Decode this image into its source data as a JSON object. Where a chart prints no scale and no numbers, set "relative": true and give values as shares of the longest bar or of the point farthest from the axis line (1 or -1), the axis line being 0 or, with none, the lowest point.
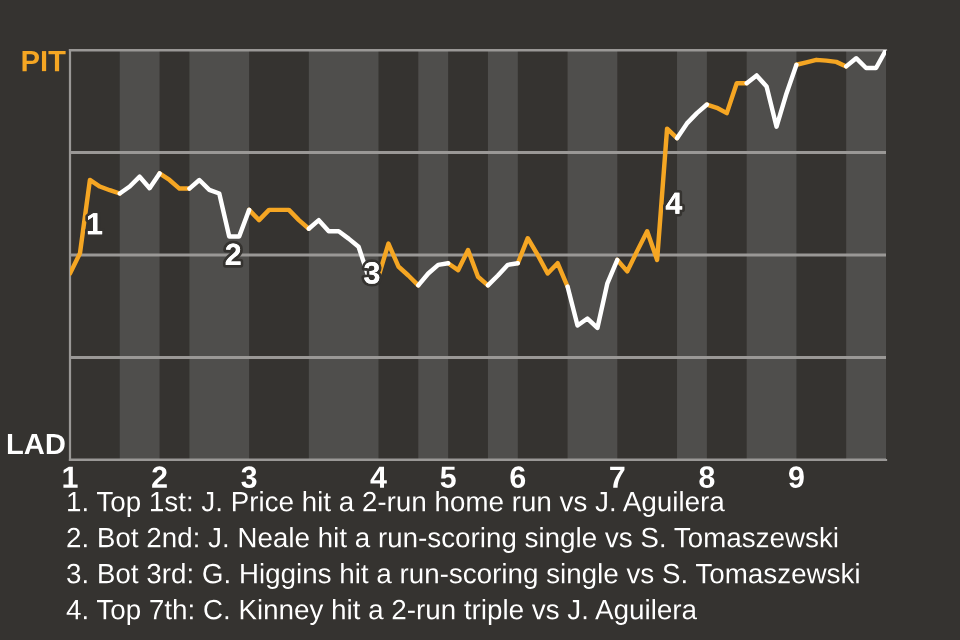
{
  "chart_data": {
    "type": "line",
    "relative": true,
    "categories": [
      "1",
      null,
      null,
      null,
      null,
      null,
      null,
      null,
      null,
      "2",
      null,
      null,
      null,
      null,
      null,
      null,
      null,
      null,
      "3",
      null,
      null,
      null,
      null,
      null,
      null,
      null,
      null,
      null,
      null,
      null,
      null,
      "4",
      null,
      null,
      null,
      null,
      null,
      null,
      "5",
      null,
      null,
      null,
      null,
      null,
      null,
      "6",
      null,
      null,
      null,
      null,
      null,
      null,
      null,
      null,
      null,
      "7",
      null,
      null,
      null,
      null,
      null,
      null,
      null,
      null,
      "8",
      null,
      null,
      null,
      null,
      null,
      null,
      null,
      null,
      "9",
      null,
      null,
      null,
      null,
      null,
      null,
      null,
      null,
      null
    ],
    "grid": "y",
    "series": [
      {
        "name": "PIT",
        "color": "#f5a623",
        "values": [
          0.455,
          0.504,
          0.683,
          0.667,
          0.658,
          0.65,
          null,
          null,
          null,
          0.699,
          0.683,
          0.662,
          0.662,
          null,
          null,
          null,
          null,
          null,
          0.61,
          0.585,
          0.61,
          0.61,
          0.61,
          0.585,
          0.564,
          null,
          null,
          null,
          null,
          null,
          null,
          0.447,
          0.528,
          0.472,
          0.45,
          0.426,
          null,
          null,
          0.48,
          0.463,
          0.512,
          0.447,
          0.426,
          null,
          null,
          0.48,
          0.541,
          0.5,
          0.455,
          0.48,
          0.423,
          null,
          null,
          null,
          null,
          0.488,
          0.46,
          0.51,
          0.558,
          0.488,
          0.808,
          0.785,
          null,
          null,
          0.867,
          0.859,
          0.846,
          0.919,
          0.919,
          null,
          null,
          null,
          null,
          0.964,
          0.97,
          0.976,
          0.974,
          0.971,
          0.96,
          null,
          null,
          null,
          null
        ]
      },
      {
        "name": "LAD",
        "color": "#ffffff",
        "values": [
          null,
          null,
          null,
          null,
          null,
          0.65,
          0.667,
          0.691,
          0.663,
          0.699,
          null,
          null,
          0.662,
          0.683,
          0.659,
          0.65,
          0.545,
          0.545,
          0.61,
          null,
          null,
          null,
          null,
          null,
          0.564,
          0.585,
          0.558,
          0.558,
          0.54,
          0.52,
          0.447,
          0.447,
          null,
          null,
          null,
          0.426,
          0.455,
          0.476,
          0.48,
          null,
          null,
          null,
          0.426,
          0.45,
          0.476,
          0.48,
          null,
          null,
          null,
          null,
          0.423,
          0.328,
          0.345,
          0.322,
          0.431,
          0.488,
          null,
          null,
          null,
          null,
          null,
          0.785,
          0.821,
          0.846,
          0.867,
          null,
          null,
          null,
          0.919,
          0.938,
          0.911,
          0.813,
          0.894,
          0.964,
          null,
          null,
          null,
          null,
          0.96,
          0.98,
          0.956,
          0.956,
          1.0
        ]
      }
    ],
    "annotations": [
      "1",
      "2",
      "3",
      "4",
      "1. Top 1st: J. Price hit a 2-run home run vs J. Aguilera",
      "2. Bot 2nd: J. Neale hit a run-scoring single vs S. Tomaszewski",
      "3. Bot 3rd: G. Higgins hit a run-scoring single vs S. Tomaszewski",
      "4. Top 7th: C. Kinney hit a 2-run triple vs J. Aguilera"
    ]
  }
}
